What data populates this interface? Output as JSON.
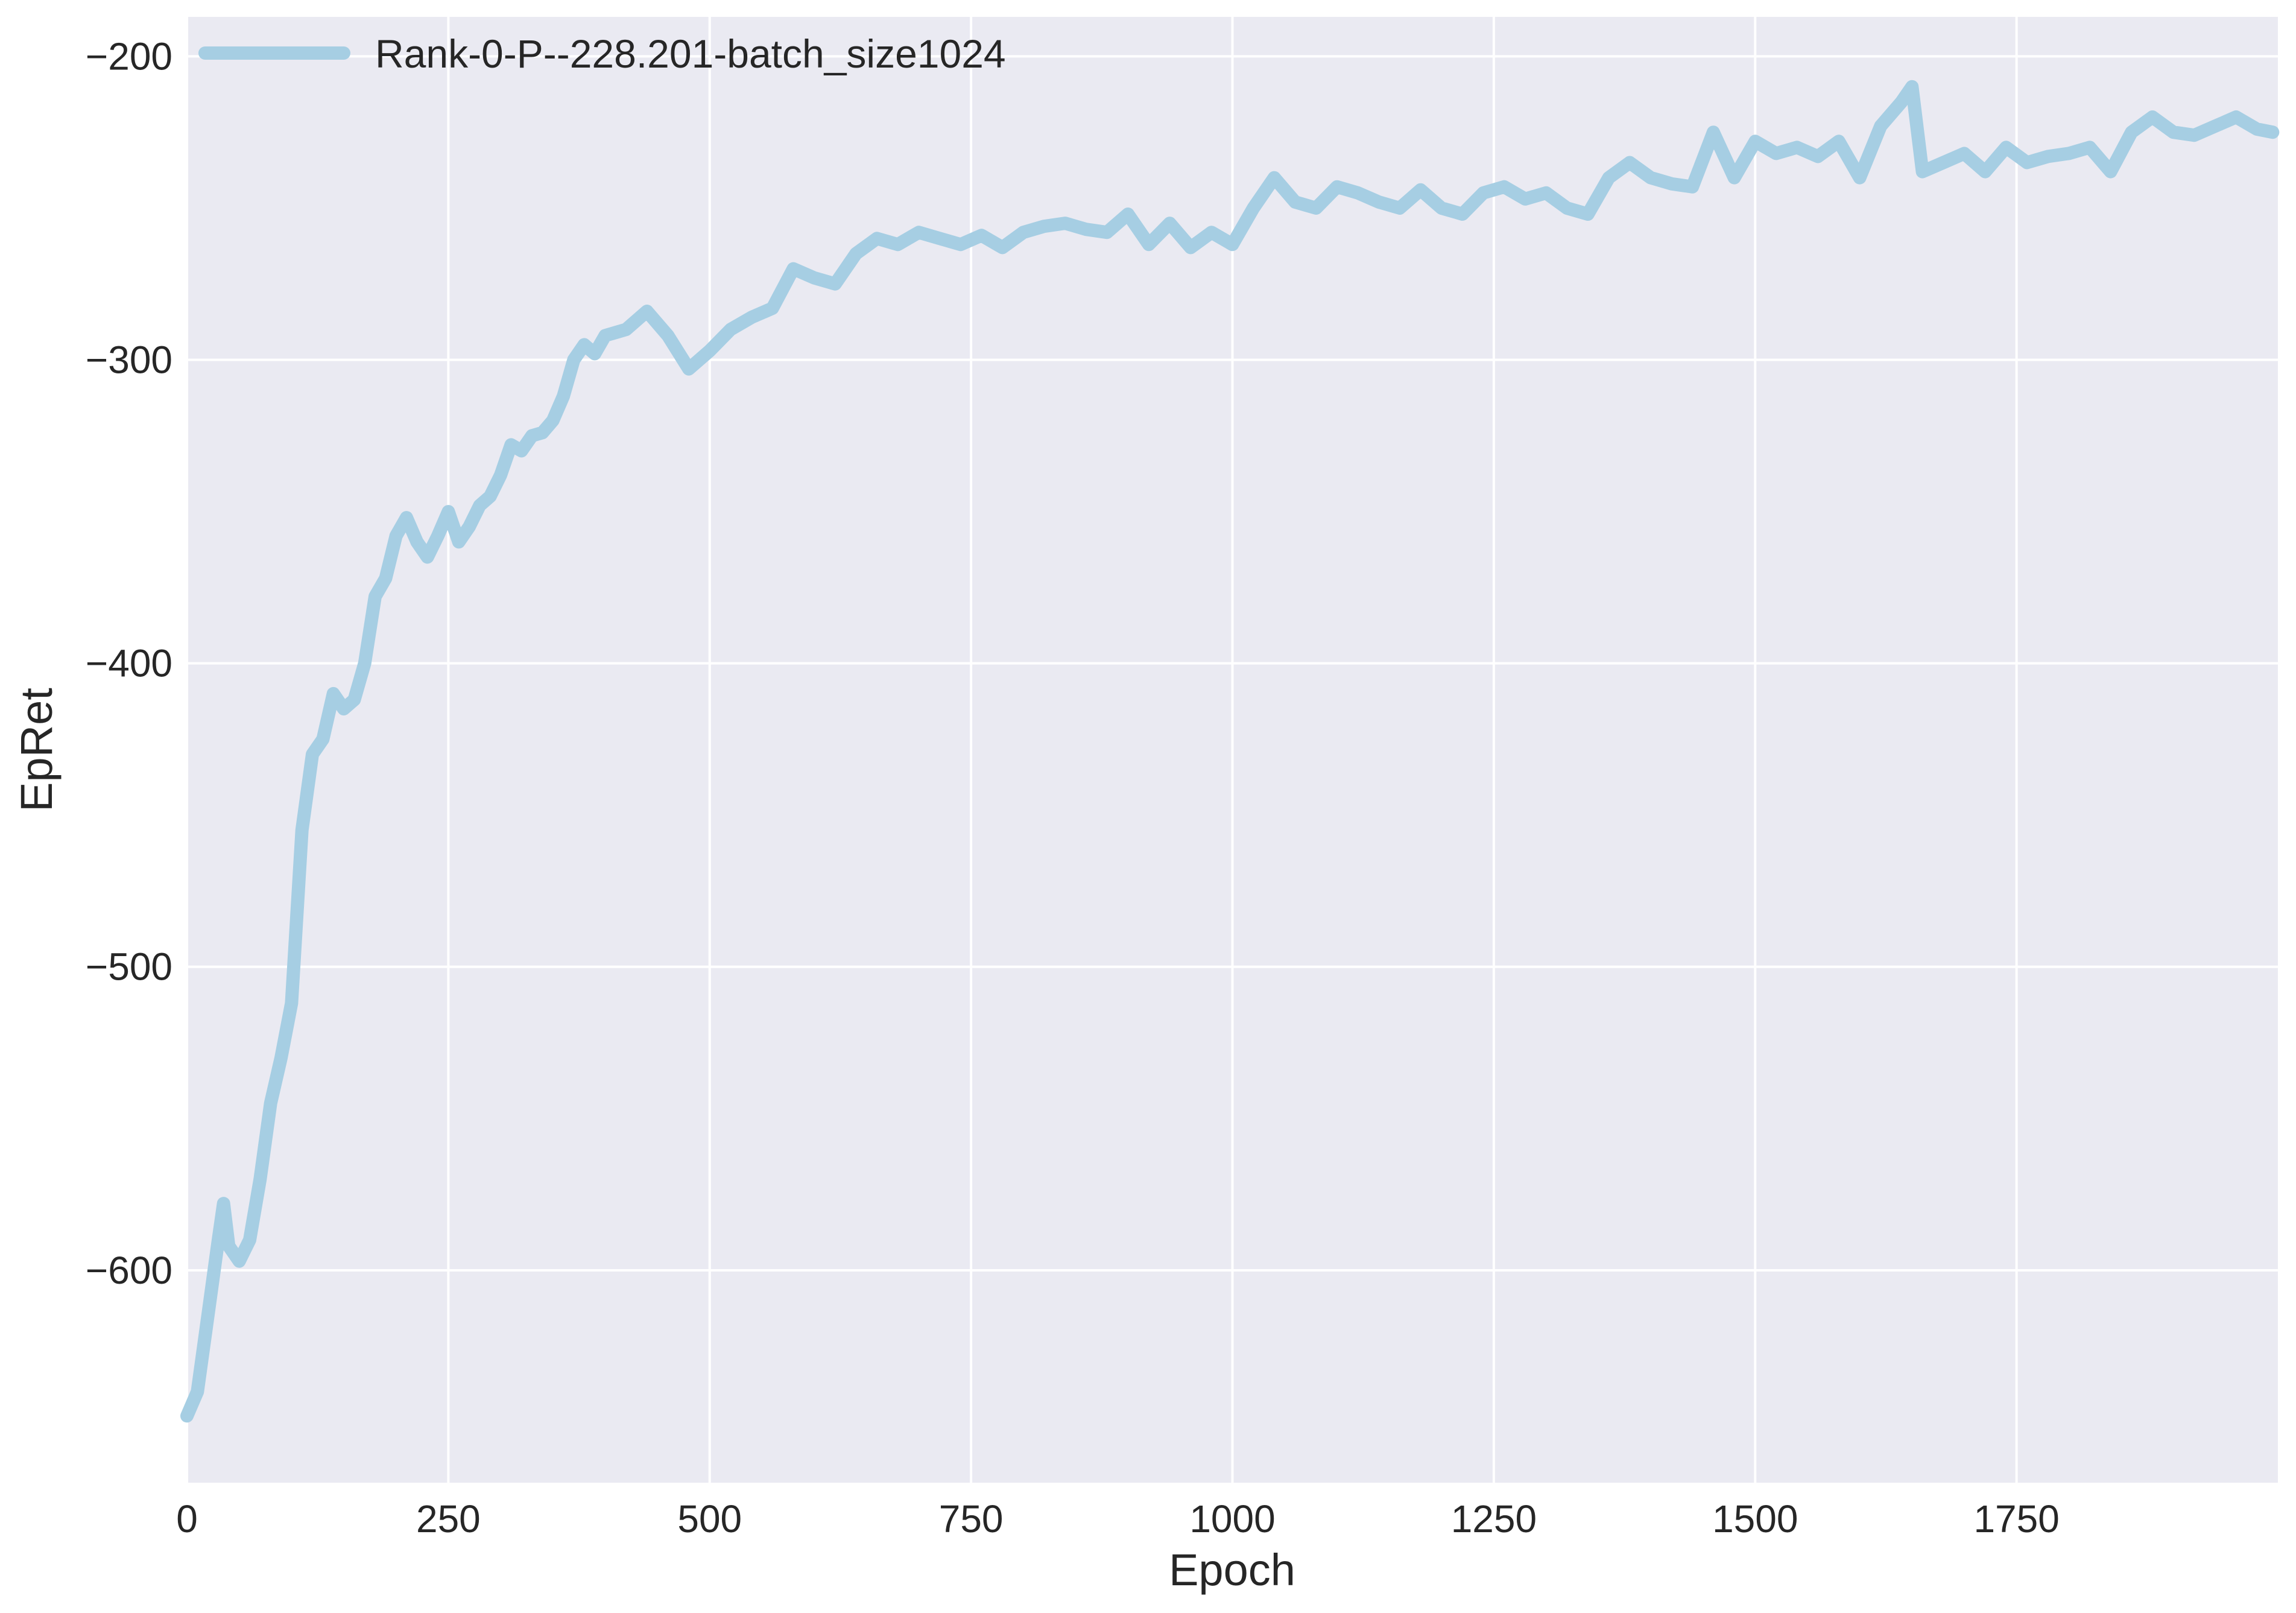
{
  "chart_data": {
    "type": "line",
    "xlabel": "Epoch",
    "ylabel": "EpRet",
    "xlim": [
      0,
      2000
    ],
    "ylim": [
      -670,
      -187
    ],
    "xticks": [
      0,
      250,
      500,
      750,
      1000,
      1250,
      1500,
      1750
    ],
    "yticks": [
      -600,
      -500,
      -400,
      -300,
      -200
    ],
    "grid": true,
    "background": "#EAEAF2",
    "legend_position": "top-left",
    "series": [
      {
        "name": "Rank-0-P--228.201-batch_size1024",
        "color": "#A6CEE3",
        "x": [
          0,
          10,
          20,
          30,
          35,
          40,
          50,
          60,
          70,
          80,
          90,
          100,
          110,
          120,
          130,
          140,
          150,
          160,
          170,
          180,
          190,
          200,
          210,
          220,
          230,
          240,
          250,
          260,
          270,
          280,
          290,
          300,
          310,
          320,
          330,
          340,
          350,
          360,
          370,
          380,
          390,
          400,
          420,
          440,
          460,
          480,
          500,
          520,
          540,
          560,
          580,
          600,
          620,
          640,
          660,
          680,
          700,
          720,
          740,
          760,
          780,
          800,
          820,
          840,
          860,
          880,
          900,
          920,
          940,
          960,
          980,
          1000,
          1020,
          1040,
          1060,
          1080,
          1100,
          1120,
          1140,
          1160,
          1180,
          1200,
          1220,
          1240,
          1260,
          1280,
          1300,
          1320,
          1340,
          1360,
          1380,
          1400,
          1420,
          1440,
          1460,
          1480,
          1500,
          1520,
          1540,
          1560,
          1580,
          1600,
          1620,
          1640,
          1650,
          1660,
          1680,
          1700,
          1720,
          1740,
          1760,
          1780,
          1800,
          1820,
          1840,
          1860,
          1880,
          1900,
          1920,
          1940,
          1960,
          1980,
          1995
        ],
        "values": [
          -648,
          -640,
          -615,
          -590,
          -578,
          -592,
          -597,
          -590,
          -570,
          -545,
          -530,
          -512,
          -455,
          -430,
          -425,
          -410,
          -415,
          -412,
          -400,
          -378,
          -372,
          -358,
          -352,
          -360,
          -365,
          -358,
          -350,
          -360,
          -355,
          -348,
          -345,
          -338,
          -328,
          -330,
          -325,
          -324,
          -320,
          -312,
          -300,
          -295,
          -298,
          -292,
          -290,
          -284,
          -292,
          -303,
          -297,
          -290,
          -286,
          -283,
          -270,
          -273,
          -275,
          -265,
          -260,
          -262,
          -258,
          -260,
          -262,
          -259,
          -263,
          -258,
          -256,
          -255,
          -257,
          -258,
          -252,
          -262,
          -255,
          -263,
          -258,
          -262,
          -250,
          -240,
          -248,
          -250,
          -243,
          -245,
          -248,
          -250,
          -244,
          -250,
          -252,
          -245,
          -243,
          -247,
          -245,
          -250,
          -252,
          -240,
          -235,
          -240,
          -242,
          -243,
          -225,
          -240,
          -228,
          -232,
          -230,
          -233,
          -228,
          -240,
          -223,
          -215,
          -210,
          -238,
          -235,
          -232,
          -238,
          -230,
          -235,
          -233,
          -232,
          -230,
          -238,
          -225,
          -220,
          -225,
          -226,
          -223,
          -220,
          -224,
          -225
        ]
      }
    ]
  }
}
